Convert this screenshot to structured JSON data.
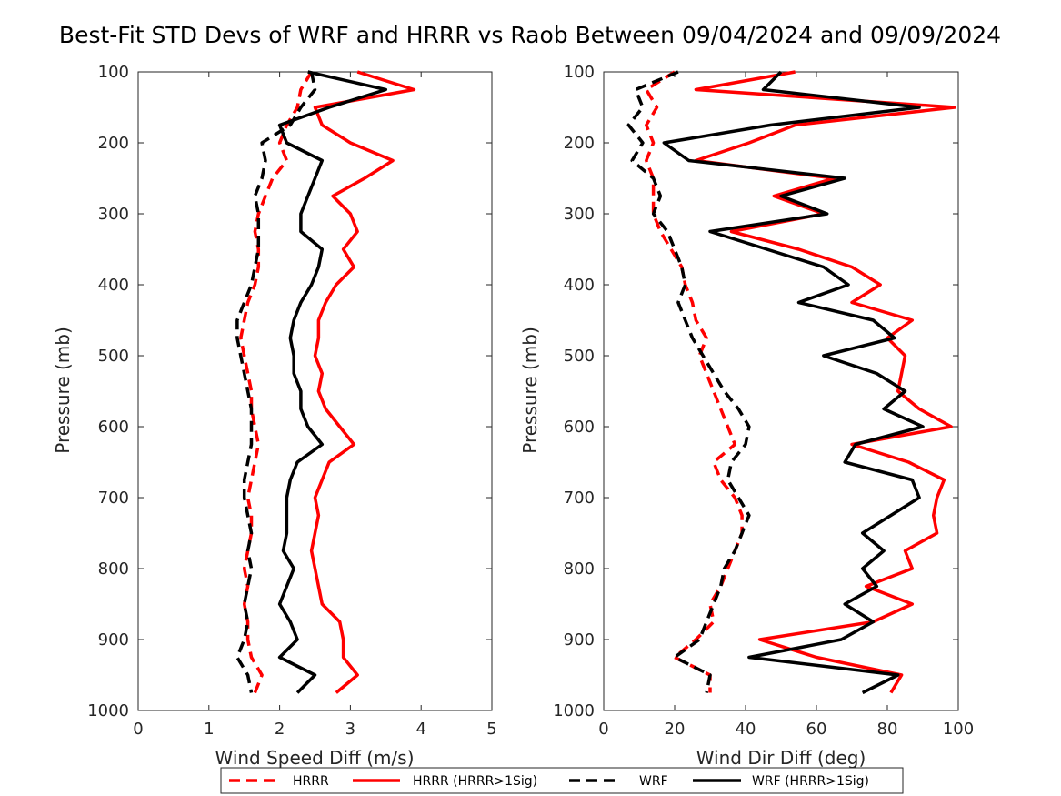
{
  "title": "Best-Fit STD Devs of WRF and HRRR vs Raob Between 09/04/2024 and 09/09/2024",
  "legend": {
    "entries": [
      {
        "label": "HRRR",
        "color": "#ff0000",
        "dash": true
      },
      {
        "label": "HRRR (HRRR>1Sig)",
        "color": "#ff0000",
        "dash": false
      },
      {
        "label": "WRF",
        "color": "#000000",
        "dash": true
      },
      {
        "label": "WRF (HRRR>1Sig)",
        "color": "#000000",
        "dash": false
      }
    ]
  },
  "chart_data": [
    {
      "type": "line",
      "xlabel": "Wind Speed Diff (m/s)",
      "ylabel": "Pressure (mb)",
      "xlim": [
        0,
        5
      ],
      "ylim": [
        100,
        1000
      ],
      "y_reversed": true,
      "grid": false,
      "xticks": [
        0,
        1,
        2,
        3,
        4,
        5
      ],
      "yticks": [
        100,
        200,
        300,
        400,
        500,
        600,
        700,
        800,
        900,
        1000
      ],
      "pressure": [
        100,
        125,
        150,
        175,
        200,
        225,
        250,
        275,
        300,
        325,
        350,
        375,
        400,
        425,
        450,
        475,
        500,
        525,
        550,
        575,
        600,
        625,
        650,
        675,
        700,
        725,
        750,
        775,
        800,
        825,
        850,
        875,
        900,
        925,
        950,
        975
      ],
      "series": [
        {
          "name": "HRRR",
          "color": "#ff0000",
          "dash": true,
          "x": [
            2.45,
            2.3,
            2.25,
            2.1,
            2.0,
            2.1,
            1.9,
            1.8,
            1.7,
            1.65,
            1.7,
            1.7,
            1.65,
            1.55,
            1.5,
            1.45,
            1.5,
            1.55,
            1.6,
            1.6,
            1.65,
            1.7,
            1.65,
            1.6,
            1.55,
            1.6,
            1.6,
            1.55,
            1.5,
            1.55,
            1.5,
            1.55,
            1.55,
            1.6,
            1.75,
            1.65
          ]
        },
        {
          "name": "HRRR (HRRR>1Sig)",
          "color": "#ff0000",
          "dash": false,
          "x": [
            3.1,
            3.9,
            2.5,
            2.6,
            3.0,
            3.6,
            3.2,
            2.75,
            3.0,
            3.1,
            2.9,
            3.05,
            2.8,
            2.65,
            2.55,
            2.55,
            2.5,
            2.6,
            2.55,
            2.65,
            2.85,
            3.05,
            2.7,
            2.6,
            2.5,
            2.55,
            2.5,
            2.45,
            2.5,
            2.55,
            2.6,
            2.85,
            2.9,
            2.9,
            3.1,
            2.8
          ]
        },
        {
          "name": "WRF",
          "color": "#000000",
          "dash": true,
          "x": [
            2.45,
            2.5,
            2.3,
            2.15,
            1.75,
            1.8,
            1.75,
            1.65,
            1.7,
            1.7,
            1.7,
            1.65,
            1.6,
            1.5,
            1.4,
            1.4,
            1.45,
            1.5,
            1.55,
            1.6,
            1.6,
            1.6,
            1.55,
            1.5,
            1.5,
            1.55,
            1.6,
            1.55,
            1.6,
            1.55,
            1.5,
            1.55,
            1.5,
            1.4,
            1.55,
            1.6
          ]
        },
        {
          "name": "WRF (HRRR>1Sig)",
          "color": "#000000",
          "dash": false,
          "x": [
            2.4,
            3.5,
            2.7,
            2.0,
            2.1,
            2.6,
            2.5,
            2.4,
            2.3,
            2.3,
            2.6,
            2.55,
            2.45,
            2.3,
            2.2,
            2.15,
            2.2,
            2.2,
            2.3,
            2.3,
            2.4,
            2.6,
            2.25,
            2.15,
            2.1,
            2.1,
            2.1,
            2.05,
            2.2,
            2.1,
            2.0,
            2.15,
            2.25,
            2.0,
            2.5,
            2.25
          ]
        }
      ]
    },
    {
      "type": "line",
      "xlabel": "Wind Dir Diff (deg)",
      "ylabel": "Pressure (mb)",
      "xlim": [
        0,
        100
      ],
      "ylim": [
        100,
        1000
      ],
      "y_reversed": true,
      "grid": false,
      "xticks": [
        0,
        20,
        40,
        60,
        80,
        100
      ],
      "yticks": [
        100,
        200,
        300,
        400,
        500,
        600,
        700,
        800,
        900,
        1000
      ],
      "pressure": [
        100,
        125,
        150,
        175,
        200,
        225,
        250,
        275,
        300,
        325,
        350,
        375,
        400,
        425,
        450,
        475,
        500,
        525,
        550,
        575,
        600,
        625,
        650,
        675,
        700,
        725,
        750,
        775,
        800,
        825,
        850,
        875,
        900,
        925,
        950,
        975
      ],
      "series": [
        {
          "name": "HRRR",
          "color": "#ff0000",
          "dash": true,
          "x": [
            20,
            12,
            15,
            12,
            14,
            12,
            14,
            14,
            14,
            16,
            19,
            22,
            23,
            25,
            26,
            29,
            27,
            29,
            31,
            33,
            35,
            37,
            31,
            33,
            37,
            39,
            39,
            37,
            35,
            33,
            30,
            31,
            26,
            20,
            30,
            30
          ]
        },
        {
          "name": "HRRR (HRRR>1Sig)",
          "color": "#ff0000",
          "dash": false,
          "x": [
            54,
            26,
            99,
            54,
            41,
            26,
            65,
            48,
            62,
            36,
            55,
            70,
            78,
            70,
            87,
            80,
            85,
            84,
            83,
            89,
            98,
            70,
            86,
            96,
            94,
            93,
            94,
            85,
            87,
            74,
            87,
            76,
            44,
            60,
            84,
            81
          ]
        },
        {
          "name": "WRF",
          "color": "#000000",
          "dash": true,
          "x": [
            21,
            9,
            11,
            7,
            11,
            8,
            14,
            16,
            14,
            18,
            20,
            22,
            23,
            21,
            23,
            25,
            28,
            31,
            34,
            38,
            41,
            40,
            36,
            35,
            38,
            41,
            39,
            37,
            34,
            33,
            31,
            29,
            27,
            20,
            30,
            29
          ]
        },
        {
          "name": "WRF (HRRR>1Sig)",
          "color": "#000000",
          "dash": false,
          "x": [
            50,
            45,
            89,
            47,
            17,
            24,
            68,
            50,
            63,
            30,
            46,
            62,
            69,
            55,
            76,
            82,
            62,
            77,
            85,
            79,
            90,
            71,
            68,
            87,
            89,
            81,
            73,
            79,
            73,
            77,
            68,
            76,
            67,
            41,
            83,
            73
          ]
        }
      ]
    }
  ]
}
